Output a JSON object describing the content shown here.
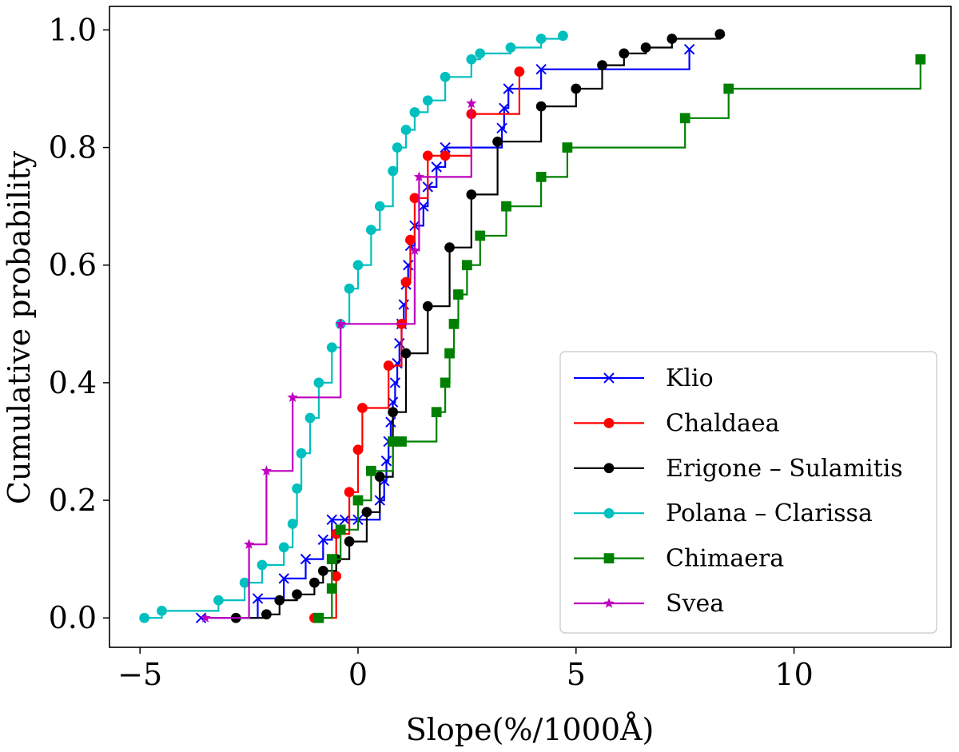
{
  "chart_data": {
    "type": "line",
    "step": "post",
    "xlabel": "Slope(%/1000Å)",
    "ylabel": "Cumulative probability",
    "xlim": [
      -5.7,
      13.6
    ],
    "ylim": [
      -0.05,
      1.04
    ],
    "x_ticks": [
      -5,
      0,
      5,
      10
    ],
    "x_tick_labels": [
      "−5",
      "0",
      "5",
      "10"
    ],
    "y_ticks": [
      0.0,
      0.2,
      0.4,
      0.6,
      0.8,
      1.0
    ],
    "y_tick_labels": [
      "0.0",
      "0.2",
      "0.4",
      "0.6",
      "0.8",
      "1.0"
    ],
    "grid": false,
    "legend_position": "lower right",
    "series": [
      {
        "name": "Klio",
        "color": "#0000ff",
        "marker": "x",
        "x": [
          -3.6,
          -2.3,
          -1.7,
          -1.2,
          -0.8,
          -0.6,
          -0.3,
          0.0,
          0.5,
          0.6,
          0.65,
          0.7,
          0.75,
          0.8,
          0.85,
          0.9,
          0.95,
          1.0,
          1.05,
          1.1,
          1.15,
          1.2,
          1.3,
          1.5,
          1.6,
          1.8,
          2.0,
          3.3,
          3.35,
          3.45,
          4.2,
          7.6
        ],
        "y": [
          0.0,
          0.033,
          0.067,
          0.1,
          0.133,
          0.167,
          0.167,
          0.167,
          0.2,
          0.233,
          0.267,
          0.3,
          0.333,
          0.367,
          0.4,
          0.433,
          0.467,
          0.5,
          0.533,
          0.567,
          0.6,
          0.633,
          0.667,
          0.7,
          0.733,
          0.767,
          0.8,
          0.833,
          0.867,
          0.9,
          0.933,
          0.967
        ]
      },
      {
        "name": "Chaldaea",
        "color": "#ff0000",
        "marker": "o",
        "x": [
          -1.0,
          -0.5,
          -0.5,
          -0.2,
          0.0,
          0.1,
          0.7,
          1.0,
          1.1,
          1.2,
          1.3,
          1.6,
          2.0,
          2.6,
          3.7
        ],
        "y": [
          0.0,
          0.071,
          0.143,
          0.214,
          0.286,
          0.357,
          0.429,
          0.5,
          0.571,
          0.643,
          0.714,
          0.786,
          0.786,
          0.857,
          0.929
        ]
      },
      {
        "name": "Erigone – Sulamitis",
        "color": "#000000",
        "marker": "o",
        "x": [
          -2.8,
          -2.1,
          -1.8,
          -1.4,
          -1.0,
          -0.8,
          -0.5,
          -0.2,
          0.2,
          0.5,
          0.8,
          1.1,
          1.6,
          2.1,
          2.6,
          3.2,
          4.2,
          5.0,
          5.6,
          6.1,
          6.6,
          7.2,
          8.3
        ],
        "y": [
          0.0,
          0.006,
          0.03,
          0.04,
          0.06,
          0.08,
          0.1,
          0.13,
          0.18,
          0.24,
          0.35,
          0.45,
          0.53,
          0.63,
          0.72,
          0.81,
          0.87,
          0.9,
          0.94,
          0.96,
          0.97,
          0.985,
          0.993
        ]
      },
      {
        "name": "Polana – Clarissa",
        "color": "#00bfbf",
        "marker": "o",
        "x": [
          -4.9,
          -4.5,
          -3.2,
          -2.6,
          -2.2,
          -1.7,
          -1.5,
          -1.4,
          -1.3,
          -1.1,
          -0.9,
          -0.6,
          -0.4,
          -0.2,
          0.0,
          0.3,
          0.5,
          0.8,
          0.9,
          1.1,
          1.3,
          1.6,
          2.0,
          2.6,
          2.8,
          3.5,
          4.2,
          4.7
        ],
        "y": [
          0.0,
          0.012,
          0.03,
          0.06,
          0.09,
          0.12,
          0.16,
          0.22,
          0.28,
          0.34,
          0.4,
          0.46,
          0.5,
          0.56,
          0.6,
          0.66,
          0.7,
          0.76,
          0.8,
          0.83,
          0.86,
          0.88,
          0.92,
          0.95,
          0.96,
          0.97,
          0.985,
          0.99
        ]
      },
      {
        "name": "Chimaera",
        "color": "#008000",
        "marker": "s",
        "x": [
          -0.9,
          -0.6,
          -0.6,
          -0.4,
          0.0,
          0.3,
          0.8,
          1.0,
          1.8,
          2.0,
          2.1,
          2.2,
          2.3,
          2.5,
          2.8,
          3.4,
          4.2,
          4.8,
          7.5,
          8.5,
          12.9
        ],
        "y": [
          0.0,
          0.05,
          0.1,
          0.15,
          0.2,
          0.25,
          0.3,
          0.3,
          0.35,
          0.4,
          0.45,
          0.5,
          0.55,
          0.6,
          0.65,
          0.7,
          0.75,
          0.8,
          0.85,
          0.9,
          0.95
        ]
      },
      {
        "name": "Svea",
        "color": "#bf00bf",
        "marker": "*",
        "x": [
          -3.5,
          -2.5,
          -2.1,
          -1.5,
          -0.4,
          1.3,
          1.4,
          2.6
        ],
        "y": [
          0.0,
          0.125,
          0.25,
          0.375,
          0.5,
          0.625,
          0.75,
          0.875
        ]
      }
    ]
  }
}
